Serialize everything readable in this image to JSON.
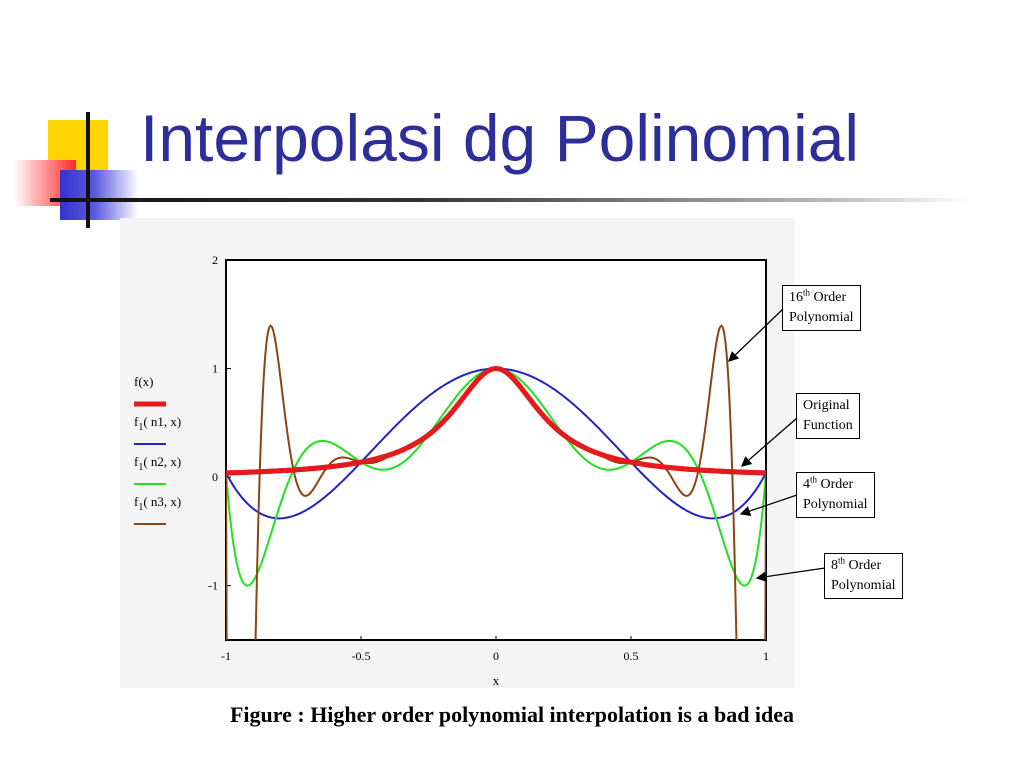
{
  "slide": {
    "title": "Interpolasi dg Polinomial"
  },
  "caption": "Figure : Higher order polynomial interpolation is a bad idea",
  "callouts": {
    "c16": {
      "num": "16",
      "sup": "th",
      "word": "Order",
      "line2": "Polynomial"
    },
    "orig": {
      "line1": "Original",
      "line2": "Function"
    },
    "c4": {
      "num": "4",
      "sup": "th",
      "word": "Order",
      "line2": "Polynomial"
    },
    "c8": {
      "num": "8",
      "sup": "th",
      "word": "Order",
      "line2": "Polynomial"
    }
  },
  "chart_data": {
    "type": "line",
    "xlabel": "x",
    "xlim": [
      -1,
      1
    ],
    "ylim": [
      -1.5,
      2
    ],
    "xticks": [
      "-1",
      "-0.5",
      "0",
      "0.5",
      "1"
    ],
    "xtick_values": [
      -1,
      -0.5,
      0,
      0.5,
      1
    ],
    "yticks": [
      "2",
      "1",
      "0",
      "-1"
    ],
    "ytick_values": [
      2,
      1,
      0,
      -1
    ],
    "grid": false,
    "legend_position": "left",
    "series": [
      {
        "name": "f(x)",
        "legend_main": "f(x)",
        "legend_args": "",
        "function": "1/(1+25x^2)",
        "color": "#e41a1c",
        "samples": 301
      },
      {
        "name": "f1(n1, x)",
        "legend_main": "f",
        "legend_sub": "1",
        "legend_args": "( n1, x)",
        "arg_sub": "1",
        "color": "#1f23c8",
        "interp_nodes": 5,
        "samples": 301
      },
      {
        "name": "f1(n2, x)",
        "legend_main": "f",
        "legend_sub": "1",
        "legend_args": "( n2, x)",
        "arg_sub": "2",
        "color": "#22e022",
        "interp_nodes": 9,
        "samples": 301
      },
      {
        "name": "f1(n3, x)",
        "legend_main": "f",
        "legend_sub": "1",
        "legend_args": "( n3, x)",
        "arg_sub": "3",
        "color": "#8b4513",
        "interp_nodes": 17,
        "samples": 401
      }
    ]
  }
}
